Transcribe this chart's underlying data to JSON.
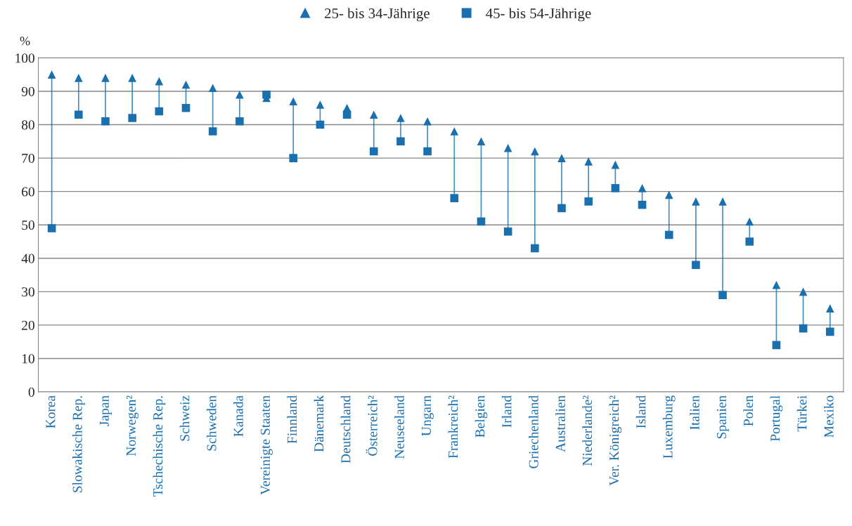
{
  "chart_data": {
    "type": "scatter",
    "ylabel": "%",
    "categories": [
      "Korea",
      "Slowakische Rep.",
      "Japan",
      "Norwegen²",
      "Tschechische Rep.",
      "Schweiz",
      "Schweden",
      "Kanada",
      "Vereinigte Staaten",
      "Finnland",
      "Dänemark",
      "Deutschland",
      "Österreich²",
      "Neuseeland",
      "Ungarn",
      "Frankreich²",
      "Belgien",
      "Irland",
      "Griechenland",
      "Australien",
      "Niederlande²",
      "Ver. Königreich²",
      "Island",
      "Luxemburg",
      "Italien",
      "Spanien",
      "Polen",
      "Portugal",
      "Türkei",
      "Mexiko"
    ],
    "series": [
      {
        "name": "25- bis 34-Jährige",
        "color": "#1a6fae",
        "marker": "triangle",
        "values": [
          95,
          94,
          94,
          94,
          93,
          92,
          91,
          89,
          88,
          87,
          86,
          85,
          83,
          82,
          81,
          78,
          75,
          73,
          72,
          70,
          69,
          68,
          61,
          59,
          57,
          57,
          51,
          32,
          30,
          25
        ]
      },
      {
        "name": "45- bis 54-Jährige",
        "color": "#1a6fae",
        "marker": "square",
        "values": [
          49,
          83,
          81,
          82,
          84,
          85,
          78,
          81,
          89,
          70,
          80,
          83,
          72,
          75,
          72,
          58,
          51,
          48,
          43,
          55,
          57,
          61,
          56,
          47,
          38,
          29,
          45,
          14,
          19,
          18
        ]
      }
    ],
    "ylim": [
      0,
      100
    ],
    "yticks": [
      0,
      10,
      20,
      30,
      40,
      50,
      60,
      70,
      80,
      90,
      100
    ],
    "grid": "y",
    "legend": "top"
  }
}
